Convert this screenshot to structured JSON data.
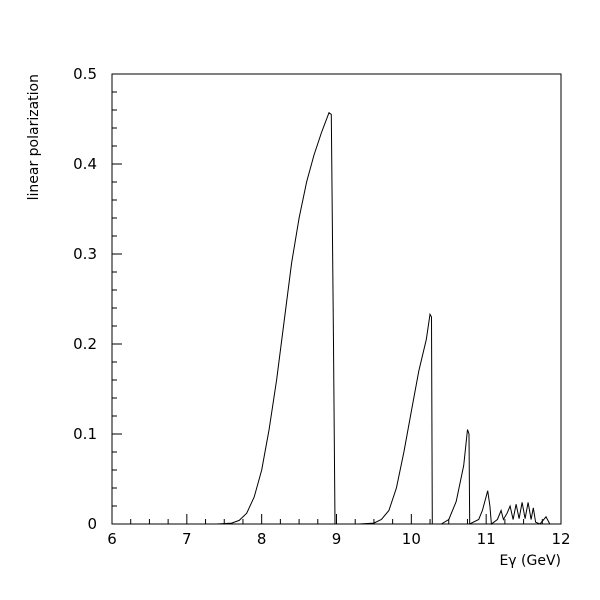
{
  "chart_data": {
    "type": "line",
    "xlabel": "Eγ (GeV)",
    "ylabel": "linear polarization",
    "xlim": [
      6,
      12
    ],
    "ylim": [
      0,
      0.5
    ],
    "xticks": [
      "6",
      "7",
      "8",
      "9",
      "10",
      "11",
      "12"
    ],
    "yticks": [
      "0",
      "0.1",
      "0.2",
      "0.3",
      "0.4",
      "0.5"
    ],
    "grid": false,
    "legend": "none",
    "series": [
      {
        "color": "#000000",
        "points": [
          [
            6.0,
            0.0
          ],
          [
            7.4,
            0.0
          ],
          [
            7.6,
            0.001
          ],
          [
            7.7,
            0.004
          ],
          [
            7.8,
            0.012
          ],
          [
            7.9,
            0.03
          ],
          [
            8.0,
            0.06
          ],
          [
            8.1,
            0.105
          ],
          [
            8.2,
            0.16
          ],
          [
            8.3,
            0.225
          ],
          [
            8.4,
            0.29
          ],
          [
            8.5,
            0.34
          ],
          [
            8.6,
            0.38
          ],
          [
            8.7,
            0.41
          ],
          [
            8.8,
            0.435
          ],
          [
            8.9,
            0.457
          ],
          [
            8.93,
            0.455
          ],
          [
            8.96,
            0.2
          ],
          [
            8.98,
            0.0
          ],
          [
            9.3,
            0.0
          ],
          [
            9.5,
            0.001
          ],
          [
            9.6,
            0.005
          ],
          [
            9.7,
            0.015
          ],
          [
            9.8,
            0.04
          ],
          [
            9.9,
            0.08
          ],
          [
            10.0,
            0.125
          ],
          [
            10.1,
            0.17
          ],
          [
            10.2,
            0.205
          ],
          [
            10.25,
            0.233
          ],
          [
            10.27,
            0.23
          ],
          [
            10.28,
            0.0
          ],
          [
            10.4,
            0.0
          ],
          [
            10.5,
            0.005
          ],
          [
            10.6,
            0.025
          ],
          [
            10.7,
            0.065
          ],
          [
            10.75,
            0.105
          ],
          [
            10.77,
            0.1
          ],
          [
            10.78,
            0.0
          ],
          [
            10.9,
            0.005
          ],
          [
            10.95,
            0.015
          ],
          [
            11.02,
            0.037
          ],
          [
            11.05,
            0.02
          ],
          [
            11.07,
            0.0
          ],
          [
            11.15,
            0.005
          ],
          [
            11.2,
            0.015
          ],
          [
            11.23,
            0.005
          ],
          [
            11.28,
            0.012
          ],
          [
            11.32,
            0.02
          ],
          [
            11.36,
            0.005
          ],
          [
            11.4,
            0.022
          ],
          [
            11.44,
            0.006
          ],
          [
            11.48,
            0.024
          ],
          [
            11.52,
            0.006
          ],
          [
            11.56,
            0.024
          ],
          [
            11.6,
            0.005
          ],
          [
            11.63,
            0.018
          ],
          [
            11.66,
            0.002
          ],
          [
            11.72,
            0.0
          ],
          [
            11.8,
            0.008
          ],
          [
            11.85,
            0.0
          ],
          [
            11.9,
            0.0
          ],
          [
            12.0,
            0.0
          ]
        ]
      }
    ]
  }
}
